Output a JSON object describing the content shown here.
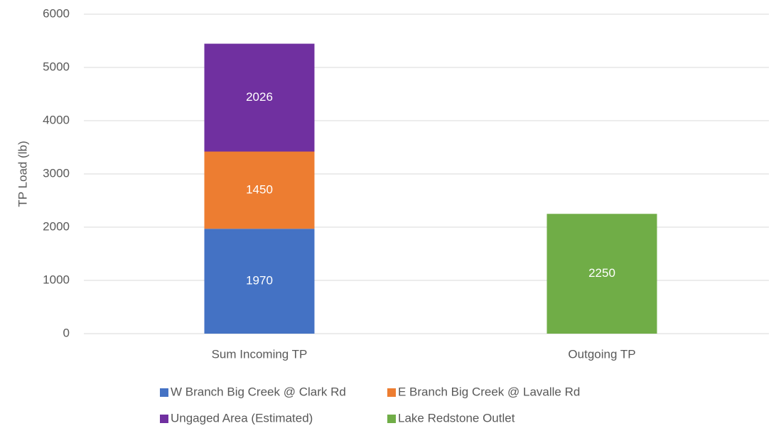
{
  "chart_data": {
    "type": "stacked_bar",
    "y_label": "TP Load (lb)",
    "categories": [
      "Sum Incoming TP",
      "Outgoing TP"
    ],
    "series": [
      {
        "name": "W Branch Big Creek @ Clark Rd",
        "color": "#4472c4",
        "values": [
          1970,
          null
        ]
      },
      {
        "name": "E Branch Big Creek @ Lavalle Rd",
        "color": "#ed7d31",
        "values": [
          1450,
          null
        ]
      },
      {
        "name": "Ungaged Area (Estimated)",
        "color": "#7030a0",
        "values": [
          2026,
          null
        ]
      },
      {
        "name": "Lake Redstone Outlet",
        "color": "#70ad47",
        "values": [
          null,
          2250
        ]
      }
    ],
    "ylim": [
      0,
      6000
    ],
    "yticks": [
      0,
      1000,
      2000,
      3000,
      4000,
      5000,
      6000
    ],
    "grid": true
  }
}
